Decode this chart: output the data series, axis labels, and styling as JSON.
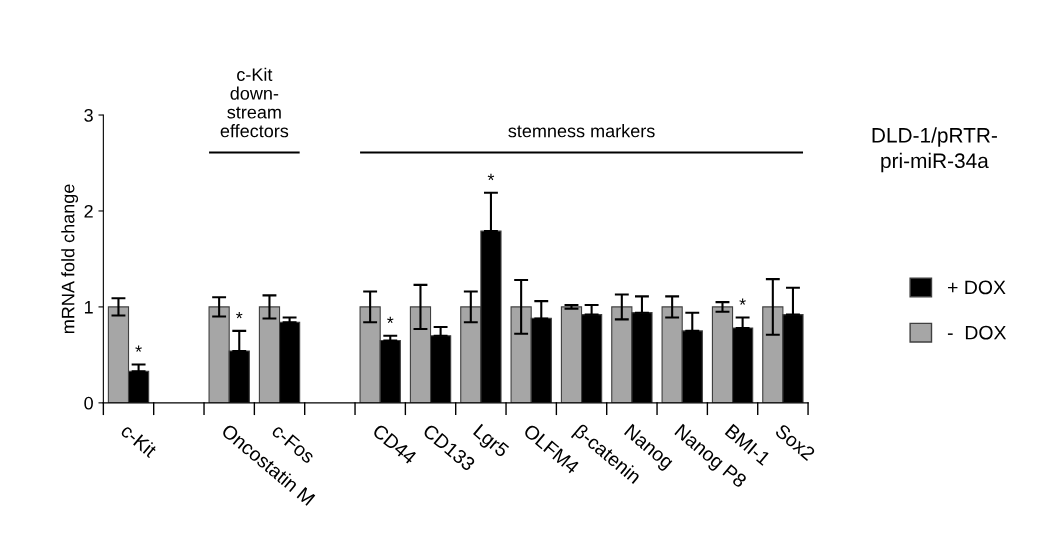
{
  "chart_data": {
    "type": "bar",
    "categories": [
      "c-Kit",
      null,
      "Oncostatin M",
      "c-Fos",
      null,
      "CD44",
      "CD133",
      "Lgr5",
      "OLFM4",
      "β-catenin",
      "Nanog",
      "Nanog P8",
      "BMI-1",
      "Sox2"
    ],
    "series": [
      {
        "name": "-  DOX",
        "color": "#a6a6a6",
        "values": [
          1,
          null,
          1,
          1,
          null,
          1,
          1,
          1,
          1,
          1,
          1,
          1,
          1,
          1
        ],
        "errors": [
          0.09,
          null,
          0.1,
          0.12,
          null,
          0.16,
          0.23,
          0.16,
          0.28,
          0.02,
          0.13,
          0.11,
          0.05,
          0.29
        ]
      },
      {
        "name": "+ DOX",
        "color": "#000000",
        "values": [
          0.33,
          null,
          0.54,
          0.84,
          null,
          0.65,
          0.7,
          1.79,
          0.88,
          0.92,
          0.94,
          0.75,
          0.78,
          0.92
        ],
        "errors": [
          [
            0.33,
            0.4
          ],
          null,
          [
            0.54,
            0.75
          ],
          [
            0.84,
            0.89
          ],
          null,
          [
            0.65,
            0.7
          ],
          [
            0.7,
            0.79
          ],
          [
            1.79,
            2.19
          ],
          [
            0.88,
            1.06
          ],
          [
            0.92,
            1.02
          ],
          [
            0.94,
            1.11
          ],
          [
            0.75,
            0.94
          ],
          [
            0.78,
            0.89
          ],
          [
            0.92,
            1.2
          ]
        ]
      }
    ],
    "ylabel": "mRNA fold change",
    "ylim": [
      0,
      3
    ],
    "yticks": [
      0,
      1,
      2,
      3
    ],
    "grid": false,
    "legend": "right",
    "annotations": [
      "c-Kit\ndown-\nstream\neffectors",
      "stemness markers",
      "DLD-1/pRTR-\npri-miR-34a",
      {
        "text": "*",
        "x": "c-Kit",
        "y": 0.33
      },
      {
        "text": "*",
        "x": "Oncostatin M",
        "y": 0.54
      },
      {
        "text": "*",
        "x": "CD44",
        "y": 0.65
      },
      {
        "text": "*",
        "x": "Lgr5",
        "y": 1.79
      },
      {
        "text": "*",
        "x": "BMI-1",
        "y": 0.78
      }
    ]
  }
}
